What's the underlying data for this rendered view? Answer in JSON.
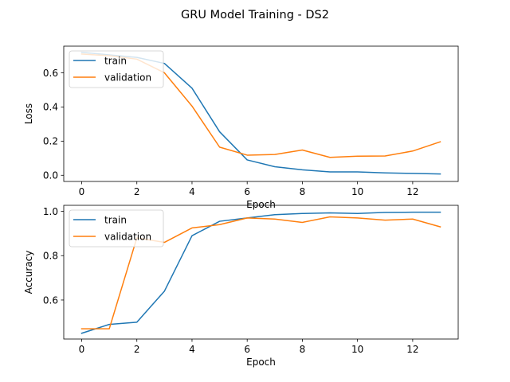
{
  "figure": {
    "title": "GRU Model Training - DS2"
  },
  "colors": {
    "train": "#1f77b4",
    "validation": "#ff7f0e"
  },
  "chart_data": [
    {
      "type": "line",
      "xlabel": "Epoch",
      "ylabel": "Loss",
      "xlim": [
        -0.65,
        13.65
      ],
      "ylim": [
        -0.036,
        0.756
      ],
      "xticks": [
        0,
        2,
        4,
        6,
        8,
        10,
        12
      ],
      "yticks": [
        0.0,
        0.2,
        0.4,
        0.6
      ],
      "ytick_labels": [
        "0.0",
        "0.2",
        "0.4",
        "0.6"
      ],
      "legend": "upper left",
      "grid": false,
      "x": [
        0,
        1,
        2,
        3,
        4,
        5,
        6,
        7,
        8,
        9,
        10,
        11,
        12,
        13
      ],
      "series": [
        {
          "name": "train",
          "values": [
            0.72,
            0.705,
            0.69,
            0.655,
            0.51,
            0.255,
            0.09,
            0.05,
            0.032,
            0.02,
            0.02,
            0.014,
            0.011,
            0.008
          ]
        },
        {
          "name": "validation",
          "values": [
            0.71,
            0.7,
            0.68,
            0.6,
            0.405,
            0.165,
            0.118,
            0.122,
            0.148,
            0.105,
            0.112,
            0.113,
            0.142,
            0.196
          ]
        }
      ]
    },
    {
      "type": "line",
      "xlabel": "Epoch",
      "ylabel": "Accuracy",
      "xlim": [
        -0.65,
        13.65
      ],
      "ylim": [
        0.424,
        1.027
      ],
      "xticks": [
        0,
        2,
        4,
        6,
        8,
        10,
        12
      ],
      "yticks": [
        0.6,
        0.8,
        1.0
      ],
      "ytick_labels": [
        "0.6",
        "0.8",
        "1.0"
      ],
      "legend": "upper left",
      "grid": false,
      "x": [
        0,
        1,
        2,
        3,
        4,
        5,
        6,
        7,
        8,
        9,
        10,
        11,
        12,
        13
      ],
      "series": [
        {
          "name": "train",
          "values": [
            0.45,
            0.49,
            0.5,
            0.64,
            0.89,
            0.955,
            0.97,
            0.985,
            0.99,
            0.993,
            0.99,
            0.995,
            0.996,
            0.996
          ]
        },
        {
          "name": "validation",
          "values": [
            0.47,
            0.47,
            0.88,
            0.86,
            0.925,
            0.94,
            0.97,
            0.965,
            0.95,
            0.975,
            0.97,
            0.96,
            0.965,
            0.93
          ]
        }
      ]
    }
  ]
}
